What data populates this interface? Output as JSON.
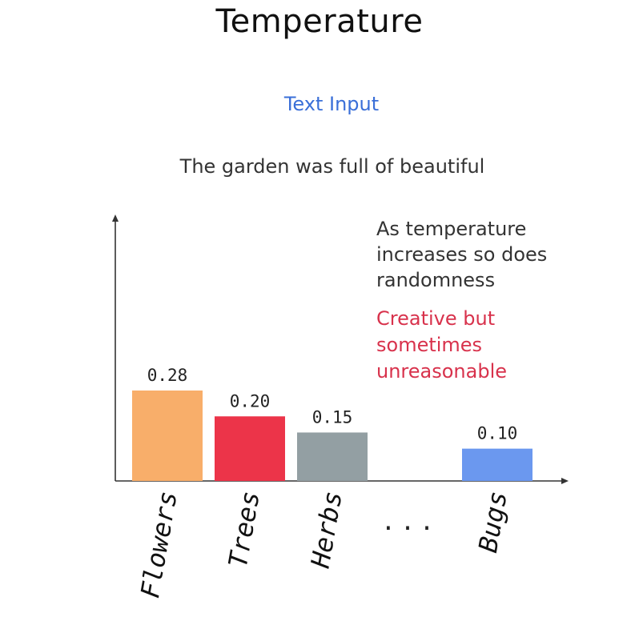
{
  "title": "Temperature",
  "input_label": "Text Input",
  "prompt": "The garden was full of beautiful",
  "note": {
    "lines": [
      "As temperature",
      "increases so does",
      "randomness"
    ],
    "highlight_lines": [
      "Creative but",
      "sometimes",
      "unreasonable"
    ],
    "text_color": "#333333",
    "highlight_color": "#d8324c"
  },
  "gap_label": "...",
  "chart_data": {
    "type": "bar",
    "title": "",
    "xlabel": "",
    "ylabel": "",
    "categories": [
      "Flowers",
      "Trees",
      "Herbs",
      "...",
      "Bugs"
    ],
    "bars": [
      {
        "label": "Flowers",
        "value": 0.28,
        "value_label": "0.28",
        "color": "#f8ae6a",
        "slot": 0
      },
      {
        "label": "Trees",
        "value": 0.2,
        "value_label": "0.20",
        "color": "#ec3449",
        "slot": 1
      },
      {
        "label": "Herbs",
        "value": 0.15,
        "value_label": "0.15",
        "color": "#939fa3",
        "slot": 2
      },
      {
        "label": "Bugs",
        "value": 0.1,
        "value_label": "0.10",
        "color": "#6b98ef",
        "slot": 4
      }
    ],
    "gap_slot": 3,
    "ylim": [
      0,
      0.82
    ],
    "grid": false,
    "legend": "none"
  }
}
